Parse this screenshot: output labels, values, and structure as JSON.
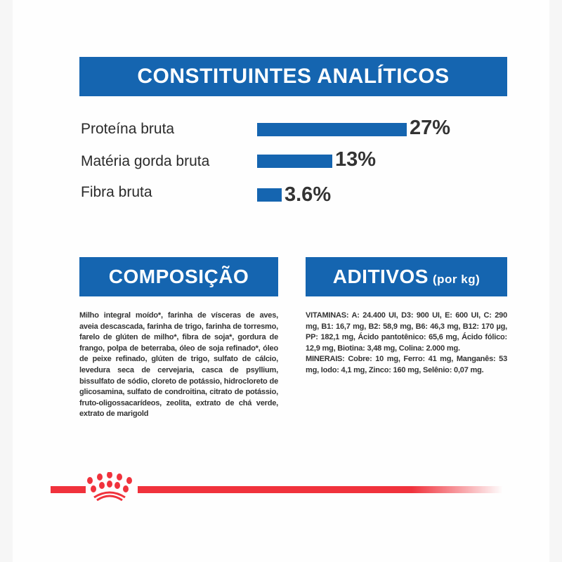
{
  "analytical": {
    "title": "CONSTITUINTES ANALÍTICOS",
    "items": [
      {
        "label": "Proteína bruta",
        "value": 27,
        "display": "27%"
      },
      {
        "label": "Matéria gorda bruta",
        "value": 13,
        "display": "13%"
      },
      {
        "label": "Fibra bruta",
        "value": 3.6,
        "display": "3.6%"
      }
    ]
  },
  "composition": {
    "title": "COMPOSIÇÃO",
    "text": "Milho integral moído*, farinha de vísceras de aves, aveia descascada, farinha de trigo, farinha de torresmo, farelo de glúten de milho*, fibra de soja*, gordura de frango, polpa de beterraba, óleo de soja refinado*, óleo de peixe refinado, glúten de trigo, sulfato de cálcio, levedura seca de cervejaria, casca de psyllium, bissulfato de sódio, cloreto de potássio, hidrocloreto de glicosamina, sulfato de condroitina, citrato de potássio, fruto-oligossacarídeos, zeolita, extrato de chá verde, extrato de marigold"
  },
  "additives": {
    "title": "ADITIVOS",
    "title_suffix": "(por kg)",
    "vitamins": "VITAMINAS: A: 24.400 UI, D3: 900 UI, E: 600 UI, C: 290 mg, B1: 16,7 mg, B2: 58,9 mg, B6: 46,3 mg, B12: 170 µg, PP: 182,1 mg, Ácido pantotênico: 65,6 mg, Ácido fólico: 12,9 mg, Biotina: 3,48 mg, Colina: 2.000 mg.",
    "minerals": "MINERAIS: Cobre: 10 mg, Ferro: 41 mg, Manganês: 53 mg, Iodo: 4,1 mg, Zinco: 160 mg, Selênio: 0,07 mg."
  },
  "colors": {
    "blue": "#1565b0",
    "red": "#f0323c"
  },
  "logo": {
    "icon": "royal-canin-crown-icon"
  }
}
